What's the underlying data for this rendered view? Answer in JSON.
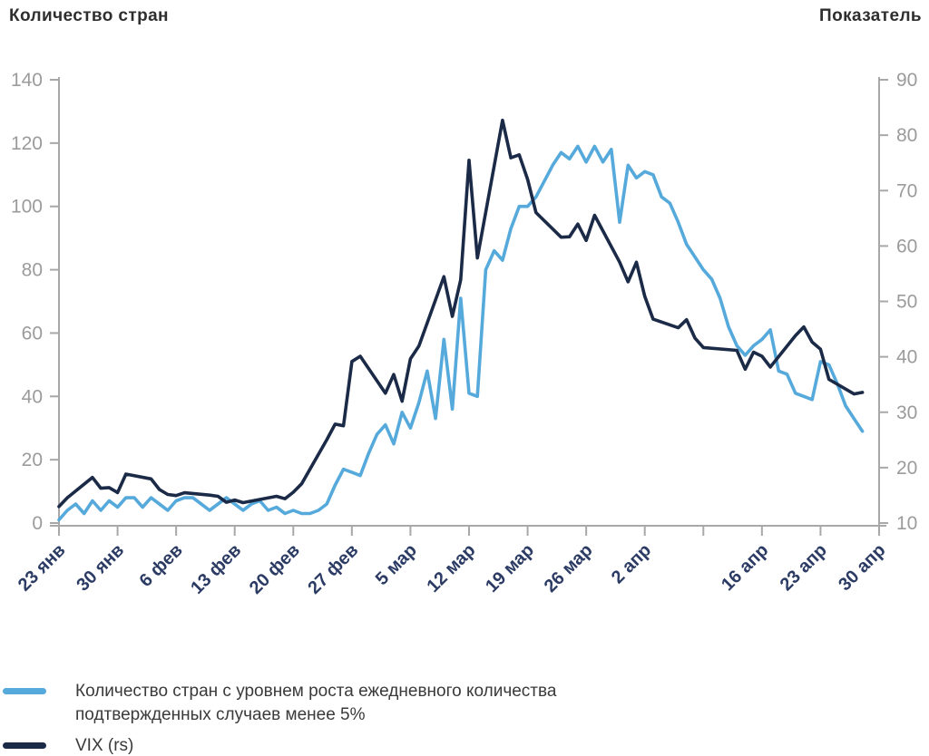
{
  "chart_data": {
    "type": "line",
    "title": "",
    "left_axis": {
      "title": "Количество стран",
      "min": 0,
      "max": 140,
      "tick_step": 20,
      "tick_labels": [
        "0",
        "20",
        "40",
        "60",
        "80",
        "100",
        "120",
        "140"
      ]
    },
    "right_axis": {
      "title": "Показатель",
      "min": 10,
      "max": 90,
      "tick_step": 10,
      "tick_labels": [
        "10",
        "20",
        "30",
        "40",
        "50",
        "60",
        "70",
        "80",
        "90"
      ]
    },
    "x_axis": {
      "total_days": 98,
      "tick_interval_days": 7,
      "tick_labels": [
        "23 янв",
        "30 янв",
        "6 фев",
        "13 фев",
        "20 фев",
        "27 фев",
        "5 мар",
        "12 мар",
        "19 мар",
        "26 мар",
        "2 апр",
        "",
        "16 апр",
        "23 апр",
        "30 апр"
      ]
    },
    "grid": false,
    "axis_color": "#a8a8a8",
    "y_tick_label_color": "#9b9b9b",
    "date_label_color": "#2b3b63",
    "series": [
      {
        "name": "Количество стран с уровнем роста ежедневного количества подтвержденных случаев менее 5%",
        "axis": "left",
        "color": "#56a9db",
        "points": [
          [
            0,
            1
          ],
          [
            1,
            4
          ],
          [
            2,
            6
          ],
          [
            3,
            3
          ],
          [
            4,
            7
          ],
          [
            5,
            4
          ],
          [
            6,
            7
          ],
          [
            7,
            5
          ],
          [
            8,
            8
          ],
          [
            9,
            8
          ],
          [
            10,
            5
          ],
          [
            11,
            8
          ],
          [
            12,
            6
          ],
          [
            13,
            4
          ],
          [
            14,
            7
          ],
          [
            15,
            8
          ],
          [
            16,
            8
          ],
          [
            17,
            6
          ],
          [
            18,
            4
          ],
          [
            19,
            6
          ],
          [
            20,
            8
          ],
          [
            21,
            6
          ],
          [
            22,
            4
          ],
          [
            23,
            6
          ],
          [
            24,
            7
          ],
          [
            25,
            4
          ],
          [
            26,
            5
          ],
          [
            27,
            3
          ],
          [
            28,
            4
          ],
          [
            29,
            3
          ],
          [
            30,
            3
          ],
          [
            31,
            4
          ],
          [
            32,
            6
          ],
          [
            33,
            12
          ],
          [
            34,
            17
          ],
          [
            35,
            16
          ],
          [
            36,
            15
          ],
          [
            37,
            22
          ],
          [
            38,
            28
          ],
          [
            39,
            31
          ],
          [
            40,
            25
          ],
          [
            41,
            35
          ],
          [
            42,
            30
          ],
          [
            43,
            38
          ],
          [
            44,
            48
          ],
          [
            45,
            33
          ],
          [
            46,
            58
          ],
          [
            47,
            36
          ],
          [
            48,
            71
          ],
          [
            49,
            41
          ],
          [
            50,
            40
          ],
          [
            51,
            80
          ],
          [
            52,
            86
          ],
          [
            53,
            83
          ],
          [
            54,
            93
          ],
          [
            55,
            100
          ],
          [
            56,
            100
          ],
          [
            57,
            103
          ],
          [
            58,
            108
          ],
          [
            59,
            113
          ],
          [
            60,
            117
          ],
          [
            61,
            115
          ],
          [
            62,
            119
          ],
          [
            63,
            114
          ],
          [
            64,
            119
          ],
          [
            65,
            114
          ],
          [
            66,
            118
          ],
          [
            67,
            95
          ],
          [
            68,
            113
          ],
          [
            69,
            109
          ],
          [
            70,
            111
          ],
          [
            71,
            110
          ],
          [
            72,
            103
          ],
          [
            73,
            101
          ],
          [
            74,
            95
          ],
          [
            75,
            88
          ],
          [
            76,
            84
          ],
          [
            77,
            80
          ],
          [
            78,
            77
          ],
          [
            79,
            71
          ],
          [
            80,
            62
          ],
          [
            81,
            56
          ],
          [
            82,
            53
          ],
          [
            83,
            56
          ],
          [
            84,
            58
          ],
          [
            85,
            61
          ],
          [
            86,
            48
          ],
          [
            87,
            47
          ],
          [
            88,
            41
          ],
          [
            89,
            40
          ],
          [
            90,
            39
          ],
          [
            91,
            51
          ],
          [
            92,
            50
          ],
          [
            93,
            44
          ],
          [
            94,
            37
          ],
          [
            95,
            33
          ],
          [
            96,
            29
          ]
        ]
      },
      {
        "name": "VIX (rs)",
        "axis": "right",
        "color": "#1b2a47",
        "points": [
          [
            0,
            12.98
          ],
          [
            1,
            14.56
          ],
          [
            4,
            18.23
          ],
          [
            5,
            16.28
          ],
          [
            6,
            16.39
          ],
          [
            7,
            15.49
          ],
          [
            8,
            18.84
          ],
          [
            11,
            17.97
          ],
          [
            12,
            16.05
          ],
          [
            13,
            15.15
          ],
          [
            14,
            14.96
          ],
          [
            15,
            15.47
          ],
          [
            18,
            15.04
          ],
          [
            19,
            14.83
          ],
          [
            20,
            13.74
          ],
          [
            21,
            14.15
          ],
          [
            22,
            13.68
          ],
          [
            26,
            14.83
          ],
          [
            27,
            14.38
          ],
          [
            28,
            15.56
          ],
          [
            29,
            17.08
          ],
          [
            32,
            25.03
          ],
          [
            33,
            27.85
          ],
          [
            34,
            27.56
          ],
          [
            35,
            39.16
          ],
          [
            36,
            40.11
          ],
          [
            39,
            33.42
          ],
          [
            40,
            36.82
          ],
          [
            41,
            31.99
          ],
          [
            42,
            39.62
          ],
          [
            43,
            41.94
          ],
          [
            46,
            54.46
          ],
          [
            47,
            47.3
          ],
          [
            48,
            53.9
          ],
          [
            49,
            75.47
          ],
          [
            50,
            57.83
          ],
          [
            53,
            82.69
          ],
          [
            54,
            75.91
          ],
          [
            55,
            76.45
          ],
          [
            56,
            72.0
          ],
          [
            57,
            66.04
          ],
          [
            60,
            61.59
          ],
          [
            61,
            61.67
          ],
          [
            62,
            63.95
          ],
          [
            63,
            61.0
          ],
          [
            64,
            65.54
          ],
          [
            67,
            57.08
          ],
          [
            68,
            53.54
          ],
          [
            69,
            57.06
          ],
          [
            70,
            50.91
          ],
          [
            71,
            46.8
          ],
          [
            74,
            45.24
          ],
          [
            75,
            46.7
          ],
          [
            76,
            43.35
          ],
          [
            77,
            41.67
          ],
          [
            81,
            41.17
          ],
          [
            82,
            37.76
          ],
          [
            83,
            40.84
          ],
          [
            84,
            40.11
          ],
          [
            85,
            38.15
          ],
          [
            88,
            43.83
          ],
          [
            89,
            45.41
          ],
          [
            90,
            42.66
          ],
          [
            91,
            41.38
          ],
          [
            92,
            35.93
          ],
          [
            95,
            33.29
          ],
          [
            96,
            33.57
          ]
        ]
      }
    ]
  },
  "legend": {
    "items": [
      {
        "label": "Количество стран с уровнем роста ежедневного количества\nподтвержденных случаев менее 5%",
        "color": "#56a9db"
      },
      {
        "label": "VIX (rs)",
        "color": "#1b2a47"
      }
    ]
  }
}
